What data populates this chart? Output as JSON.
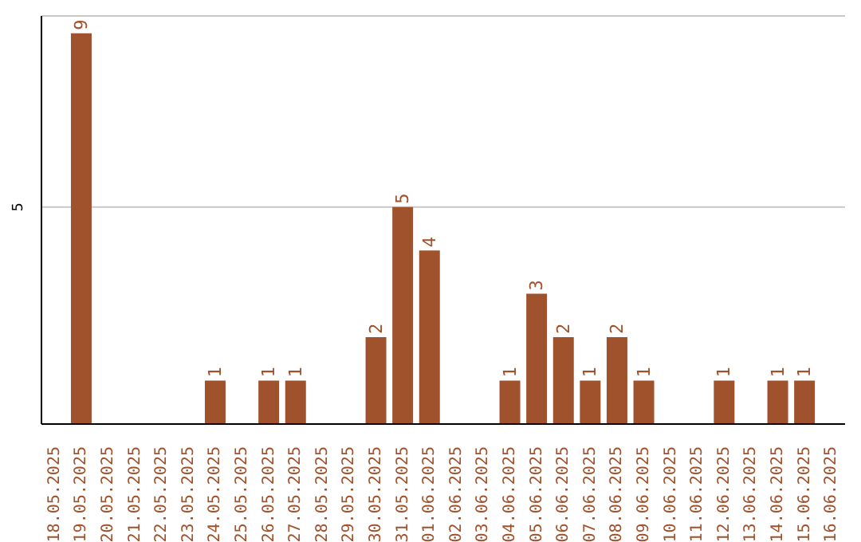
{
  "chart_data": {
    "type": "bar",
    "categories": [
      "18.05.2025",
      "19.05.2025",
      "20.05.2025",
      "21.05.2025",
      "22.05.2025",
      "23.05.2025",
      "24.05.2025",
      "25.05.2025",
      "26.05.2025",
      "27.05.2025",
      "28.05.2025",
      "29.05.2025",
      "30.05.2025",
      "31.05.2025",
      "01.06.2025",
      "02.06.2025",
      "03.06.2025",
      "04.06.2025",
      "05.06.2025",
      "06.06.2025",
      "07.06.2025",
      "08.06.2025",
      "09.06.2025",
      "10.06.2025",
      "11.06.2025",
      "12.06.2025",
      "13.06.2025",
      "14.06.2025",
      "15.06.2025",
      "16.06.2025"
    ],
    "values": [
      0,
      9,
      0,
      0,
      0,
      0,
      1,
      0,
      1,
      1,
      0,
      0,
      2,
      5,
      4,
      0,
      0,
      1,
      3,
      2,
      1,
      2,
      1,
      0,
      0,
      1,
      0,
      1,
      1,
      0
    ],
    "value_labels": [
      null,
      "9",
      null,
      null,
      null,
      null,
      "1",
      null,
      "1",
      "1",
      null,
      null,
      "2",
      "5",
      "4",
      null,
      null,
      "1",
      "3",
      "2",
      "1",
      "2",
      "1",
      null,
      null,
      "1",
      null,
      "1",
      "1",
      null
    ],
    "color": "#a0522d",
    "ylim": [
      0,
      9.4
    ],
    "yticks": [
      5
    ],
    "grid": "y"
  }
}
